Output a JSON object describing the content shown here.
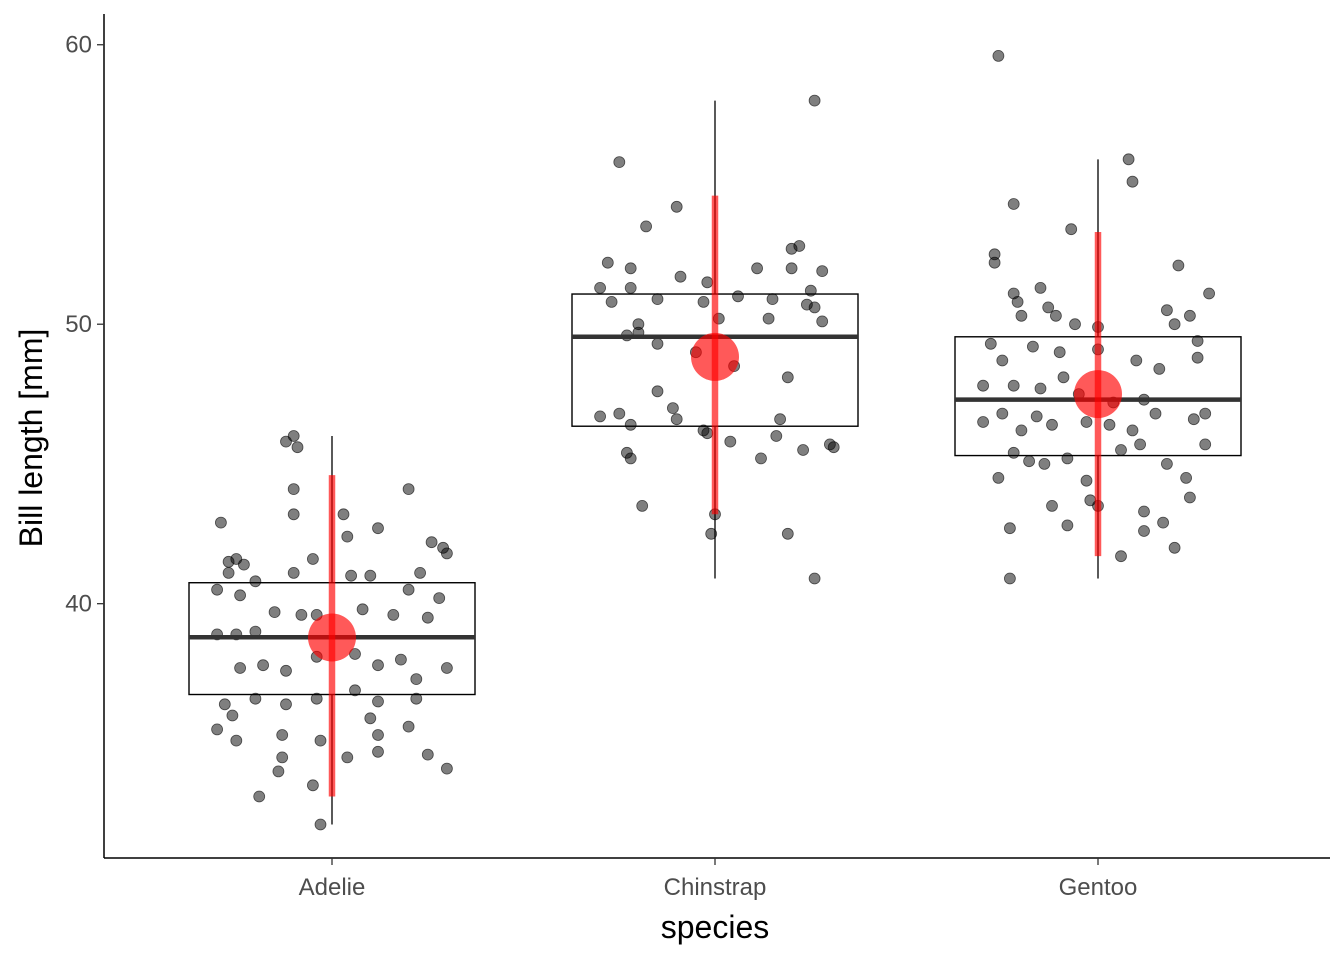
{
  "chart_data": {
    "type": "boxplot",
    "xlabel": "species",
    "ylabel": "Bill length [mm]",
    "categories": [
      "Adelie",
      "Chinstrap",
      "Gentoo"
    ],
    "y_ticks": [
      40,
      50,
      60
    ],
    "ylim": [
      30.9,
      61.1
    ],
    "grid": false,
    "legend": "none",
    "colors": {
      "points": "#000000",
      "box": "#000000",
      "mean": "#ff0000"
    },
    "boxes": [
      {
        "category": "Adelie",
        "q1": 36.75,
        "median": 38.8,
        "q3": 40.75,
        "whisker_low": 32.1,
        "whisker_high": 46.0,
        "mean": 38.79,
        "sd_low": 33.1,
        "sd_high": 44.6
      },
      {
        "category": "Chinstrap",
        "q1": 46.35,
        "median": 49.55,
        "q3": 51.08,
        "whisker_low": 40.9,
        "whisker_high": 58.0,
        "mean": 48.83,
        "sd_low": 43.2,
        "sd_high": 54.6
      },
      {
        "category": "Gentoo",
        "q1": 45.3,
        "median": 47.3,
        "q3": 49.55,
        "whisker_low": 40.9,
        "whisker_high": 55.9,
        "mean": 47.5,
        "sd_low": 41.7,
        "sd_high": 53.3
      }
    ],
    "points": [
      {
        "species": "Adelie",
        "offset": -0.29,
        "value": 42.9
      },
      {
        "species": "Adelie",
        "offset": -0.27,
        "value": 41.5
      },
      {
        "species": "Adelie",
        "offset": -0.27,
        "value": 41.1
      },
      {
        "species": "Adelie",
        "offset": -0.25,
        "value": 41.6
      },
      {
        "species": "Adelie",
        "offset": -0.23,
        "value": 41.4
      },
      {
        "species": "Adelie",
        "offset": -0.3,
        "value": 40.5
      },
      {
        "species": "Adelie",
        "offset": -0.2,
        "value": 40.8
      },
      {
        "species": "Adelie",
        "offset": -0.24,
        "value": 40.3
      },
      {
        "species": "Adelie",
        "offset": -0.1,
        "value": 41.1
      },
      {
        "species": "Adelie",
        "offset": -0.05,
        "value": 41.6
      },
      {
        "species": "Adelie",
        "offset": 0.05,
        "value": 41.0
      },
      {
        "species": "Adelie",
        "offset": 0.1,
        "value": 41.0
      },
      {
        "species": "Adelie",
        "offset": 0.2,
        "value": 40.5
      },
      {
        "species": "Adelie",
        "offset": 0.26,
        "value": 42.2
      },
      {
        "species": "Adelie",
        "offset": 0.29,
        "value": 42.0
      },
      {
        "species": "Adelie",
        "offset": 0.3,
        "value": 41.8
      },
      {
        "species": "Adelie",
        "offset": 0.12,
        "value": 42.7
      },
      {
        "species": "Adelie",
        "offset": 0.03,
        "value": 43.2
      },
      {
        "species": "Adelie",
        "offset": 0.04,
        "value": 42.4
      },
      {
        "species": "Adelie",
        "offset": -0.1,
        "value": 44.1
      },
      {
        "species": "Adelie",
        "offset": -0.1,
        "value": 43.2
      },
      {
        "species": "Adelie",
        "offset": -0.12,
        "value": 45.8
      },
      {
        "species": "Adelie",
        "offset": -0.1,
        "value": 46.0
      },
      {
        "species": "Adelie",
        "offset": -0.09,
        "value": 45.6
      },
      {
        "species": "Adelie",
        "offset": 0.2,
        "value": 44.1
      },
      {
        "species": "Adelie",
        "offset": 0.23,
        "value": 41.1
      },
      {
        "species": "Adelie",
        "offset": 0.28,
        "value": 40.2
      },
      {
        "species": "Adelie",
        "offset": -0.3,
        "value": 38.9
      },
      {
        "species": "Adelie",
        "offset": -0.25,
        "value": 38.9
      },
      {
        "species": "Adelie",
        "offset": -0.2,
        "value": 39.0
      },
      {
        "species": "Adelie",
        "offset": -0.15,
        "value": 39.7
      },
      {
        "species": "Adelie",
        "offset": -0.08,
        "value": 39.6
      },
      {
        "species": "Adelie",
        "offset": -0.04,
        "value": 39.6
      },
      {
        "species": "Adelie",
        "offset": 0.08,
        "value": 39.8
      },
      {
        "species": "Adelie",
        "offset": 0.16,
        "value": 39.6
      },
      {
        "species": "Adelie",
        "offset": 0.25,
        "value": 39.5
      },
      {
        "species": "Adelie",
        "offset": -0.24,
        "value": 37.7
      },
      {
        "species": "Adelie",
        "offset": -0.18,
        "value": 37.8
      },
      {
        "species": "Adelie",
        "offset": -0.12,
        "value": 37.6
      },
      {
        "species": "Adelie",
        "offset": -0.04,
        "value": 38.1
      },
      {
        "species": "Adelie",
        "offset": 0.06,
        "value": 38.2
      },
      {
        "species": "Adelie",
        "offset": 0.12,
        "value": 37.8
      },
      {
        "species": "Adelie",
        "offset": 0.18,
        "value": 38.0
      },
      {
        "species": "Adelie",
        "offset": 0.22,
        "value": 37.3
      },
      {
        "species": "Adelie",
        "offset": 0.3,
        "value": 37.7
      },
      {
        "species": "Adelie",
        "offset": -0.28,
        "value": 36.4
      },
      {
        "species": "Adelie",
        "offset": -0.2,
        "value": 36.6
      },
      {
        "species": "Adelie",
        "offset": -0.12,
        "value": 36.4
      },
      {
        "species": "Adelie",
        "offset": -0.04,
        "value": 36.6
      },
      {
        "species": "Adelie",
        "offset": 0.06,
        "value": 36.9
      },
      {
        "species": "Adelie",
        "offset": 0.12,
        "value": 36.5
      },
      {
        "species": "Adelie",
        "offset": 0.22,
        "value": 36.6
      },
      {
        "species": "Adelie",
        "offset": -0.26,
        "value": 36.0
      },
      {
        "species": "Adelie",
        "offset": 0.1,
        "value": 35.9
      },
      {
        "species": "Adelie",
        "offset": 0.2,
        "value": 35.6
      },
      {
        "species": "Adelie",
        "offset": -0.3,
        "value": 35.5
      },
      {
        "species": "Adelie",
        "offset": -0.25,
        "value": 35.1
      },
      {
        "species": "Adelie",
        "offset": -0.13,
        "value": 35.3
      },
      {
        "species": "Adelie",
        "offset": -0.03,
        "value": 35.1
      },
      {
        "species": "Adelie",
        "offset": 0.12,
        "value": 35.3
      },
      {
        "species": "Adelie",
        "offset": -0.13,
        "value": 34.5
      },
      {
        "species": "Adelie",
        "offset": 0.04,
        "value": 34.5
      },
      {
        "species": "Adelie",
        "offset": 0.12,
        "value": 34.7
      },
      {
        "species": "Adelie",
        "offset": 0.25,
        "value": 34.6
      },
      {
        "species": "Adelie",
        "offset": -0.14,
        "value": 34.0
      },
      {
        "species": "Adelie",
        "offset": 0.3,
        "value": 34.1
      },
      {
        "species": "Adelie",
        "offset": -0.05,
        "value": 33.5
      },
      {
        "species": "Adelie",
        "offset": -0.19,
        "value": 33.1
      },
      {
        "species": "Adelie",
        "offset": -0.03,
        "value": 32.1
      },
      {
        "species": "Chinstrap",
        "offset": -0.25,
        "value": 55.8
      },
      {
        "species": "Chinstrap",
        "offset": 0.26,
        "value": 58.0
      },
      {
        "species": "Chinstrap",
        "offset": -0.18,
        "value": 53.5
      },
      {
        "species": "Chinstrap",
        "offset": -0.1,
        "value": 54.2
      },
      {
        "species": "Chinstrap",
        "offset": -0.28,
        "value": 52.2
      },
      {
        "species": "Chinstrap",
        "offset": -0.22,
        "value": 52.0
      },
      {
        "species": "Chinstrap",
        "offset": 0.22,
        "value": 52.8
      },
      {
        "species": "Chinstrap",
        "offset": 0.2,
        "value": 52.7
      },
      {
        "species": "Chinstrap",
        "offset": 0.28,
        "value": 51.9
      },
      {
        "species": "Chinstrap",
        "offset": 0.2,
        "value": 52.0
      },
      {
        "species": "Chinstrap",
        "offset": 0.11,
        "value": 52.0
      },
      {
        "species": "Chinstrap",
        "offset": -0.09,
        "value": 51.7
      },
      {
        "species": "Chinstrap",
        "offset": -0.02,
        "value": 51.5
      },
      {
        "species": "Chinstrap",
        "offset": 0.25,
        "value": 51.2
      },
      {
        "species": "Chinstrap",
        "offset": 0.06,
        "value": 51.0
      },
      {
        "species": "Chinstrap",
        "offset": -0.3,
        "value": 51.3
      },
      {
        "species": "Chinstrap",
        "offset": -0.22,
        "value": 51.3
      },
      {
        "species": "Chinstrap",
        "offset": -0.27,
        "value": 50.8
      },
      {
        "species": "Chinstrap",
        "offset": -0.15,
        "value": 50.9
      },
      {
        "species": "Chinstrap",
        "offset": 0.15,
        "value": 50.9
      },
      {
        "species": "Chinstrap",
        "offset": 0.24,
        "value": 50.7
      },
      {
        "species": "Chinstrap",
        "offset": 0.26,
        "value": 50.6
      },
      {
        "species": "Chinstrap",
        "offset": 0.28,
        "value": 50.1
      },
      {
        "species": "Chinstrap",
        "offset": -0.03,
        "value": 50.8
      },
      {
        "species": "Chinstrap",
        "offset": 0.01,
        "value": 50.2
      },
      {
        "species": "Chinstrap",
        "offset": 0.14,
        "value": 50.2
      },
      {
        "species": "Chinstrap",
        "offset": -0.2,
        "value": 50.0
      },
      {
        "species": "Chinstrap",
        "offset": -0.23,
        "value": 49.6
      },
      {
        "species": "Chinstrap",
        "offset": -0.2,
        "value": 49.7
      },
      {
        "species": "Chinstrap",
        "offset": -0.15,
        "value": 49.3
      },
      {
        "species": "Chinstrap",
        "offset": -0.05,
        "value": 49.0
      },
      {
        "species": "Chinstrap",
        "offset": 0.05,
        "value": 48.5
      },
      {
        "species": "Chinstrap",
        "offset": 0.19,
        "value": 48.1
      },
      {
        "species": "Chinstrap",
        "offset": -0.15,
        "value": 47.6
      },
      {
        "species": "Chinstrap",
        "offset": -0.11,
        "value": 47.0
      },
      {
        "species": "Chinstrap",
        "offset": -0.1,
        "value": 46.6
      },
      {
        "species": "Chinstrap",
        "offset": -0.3,
        "value": 46.7
      },
      {
        "species": "Chinstrap",
        "offset": -0.25,
        "value": 46.8
      },
      {
        "species": "Chinstrap",
        "offset": -0.22,
        "value": 46.4
      },
      {
        "species": "Chinstrap",
        "offset": 0.17,
        "value": 46.6
      },
      {
        "species": "Chinstrap",
        "offset": 0.3,
        "value": 45.7
      },
      {
        "species": "Chinstrap",
        "offset": 0.31,
        "value": 45.6
      },
      {
        "species": "Chinstrap",
        "offset": 0.23,
        "value": 45.5
      },
      {
        "species": "Chinstrap",
        "offset": -0.23,
        "value": 45.4
      },
      {
        "species": "Chinstrap",
        "offset": -0.22,
        "value": 45.2
      },
      {
        "species": "Chinstrap",
        "offset": -0.03,
        "value": 46.2
      },
      {
        "species": "Chinstrap",
        "offset": -0.02,
        "value": 46.1
      },
      {
        "species": "Chinstrap",
        "offset": 0.04,
        "value": 45.8
      },
      {
        "species": "Chinstrap",
        "offset": 0.12,
        "value": 45.2
      },
      {
        "species": "Chinstrap",
        "offset": 0.16,
        "value": 46.0
      },
      {
        "species": "Chinstrap",
        "offset": -0.19,
        "value": 43.5
      },
      {
        "species": "Chinstrap",
        "offset": 0.0,
        "value": 43.2
      },
      {
        "species": "Chinstrap",
        "offset": -0.01,
        "value": 42.5
      },
      {
        "species": "Chinstrap",
        "offset": 0.19,
        "value": 42.5
      },
      {
        "species": "Chinstrap",
        "offset": 0.26,
        "value": 40.9
      },
      {
        "species": "Gentoo",
        "offset": -0.26,
        "value": 59.6
      },
      {
        "species": "Gentoo",
        "offset": 0.08,
        "value": 55.9
      },
      {
        "species": "Gentoo",
        "offset": 0.09,
        "value": 55.1
      },
      {
        "species": "Gentoo",
        "offset": -0.22,
        "value": 54.3
      },
      {
        "species": "Gentoo",
        "offset": -0.07,
        "value": 53.4
      },
      {
        "species": "Gentoo",
        "offset": -0.27,
        "value": 52.5
      },
      {
        "species": "Gentoo",
        "offset": -0.27,
        "value": 52.2
      },
      {
        "species": "Gentoo",
        "offset": 0.21,
        "value": 52.1
      },
      {
        "species": "Gentoo",
        "offset": 0.29,
        "value": 51.1
      },
      {
        "species": "Gentoo",
        "offset": -0.22,
        "value": 51.1
      },
      {
        "species": "Gentoo",
        "offset": -0.15,
        "value": 51.3
      },
      {
        "species": "Gentoo",
        "offset": -0.21,
        "value": 50.8
      },
      {
        "species": "Gentoo",
        "offset": -0.2,
        "value": 50.3
      },
      {
        "species": "Gentoo",
        "offset": -0.13,
        "value": 50.6
      },
      {
        "species": "Gentoo",
        "offset": -0.11,
        "value": 50.3
      },
      {
        "species": "Gentoo",
        "offset": -0.06,
        "value": 50.0
      },
      {
        "species": "Gentoo",
        "offset": 0.0,
        "value": 49.9
      },
      {
        "species": "Gentoo",
        "offset": 0.18,
        "value": 50.5
      },
      {
        "species": "Gentoo",
        "offset": 0.2,
        "value": 50.0
      },
      {
        "species": "Gentoo",
        "offset": 0.24,
        "value": 50.3
      },
      {
        "species": "Gentoo",
        "offset": 0.26,
        "value": 49.4
      },
      {
        "species": "Gentoo",
        "offset": -0.28,
        "value": 49.3
      },
      {
        "species": "Gentoo",
        "offset": -0.17,
        "value": 49.2
      },
      {
        "species": "Gentoo",
        "offset": -0.1,
        "value": 49.0
      },
      {
        "species": "Gentoo",
        "offset": 0.0,
        "value": 49.1
      },
      {
        "species": "Gentoo",
        "offset": 0.1,
        "value": 48.7
      },
      {
        "species": "Gentoo",
        "offset": 0.16,
        "value": 48.4
      },
      {
        "species": "Gentoo",
        "offset": 0.26,
        "value": 48.8
      },
      {
        "species": "Gentoo",
        "offset": -0.25,
        "value": 48.7
      },
      {
        "species": "Gentoo",
        "offset": -0.22,
        "value": 47.8
      },
      {
        "species": "Gentoo",
        "offset": -0.15,
        "value": 47.7
      },
      {
        "species": "Gentoo",
        "offset": -0.09,
        "value": 48.1
      },
      {
        "species": "Gentoo",
        "offset": -0.05,
        "value": 47.5
      },
      {
        "species": "Gentoo",
        "offset": 0.04,
        "value": 47.2
      },
      {
        "species": "Gentoo",
        "offset": 0.12,
        "value": 47.3
      },
      {
        "species": "Gentoo",
        "offset": -0.3,
        "value": 47.8
      },
      {
        "species": "Gentoo",
        "offset": -0.25,
        "value": 46.8
      },
      {
        "species": "Gentoo",
        "offset": -0.2,
        "value": 46.2
      },
      {
        "species": "Gentoo",
        "offset": -0.16,
        "value": 46.7
      },
      {
        "species": "Gentoo",
        "offset": -0.12,
        "value": 46.4
      },
      {
        "species": "Gentoo",
        "offset": -0.03,
        "value": 46.5
      },
      {
        "species": "Gentoo",
        "offset": 0.03,
        "value": 46.4
      },
      {
        "species": "Gentoo",
        "offset": 0.09,
        "value": 46.2
      },
      {
        "species": "Gentoo",
        "offset": 0.15,
        "value": 46.8
      },
      {
        "species": "Gentoo",
        "offset": 0.25,
        "value": 46.6
      },
      {
        "species": "Gentoo",
        "offset": 0.28,
        "value": 46.8
      },
      {
        "species": "Gentoo",
        "offset": -0.3,
        "value": 46.5
      },
      {
        "species": "Gentoo",
        "offset": -0.22,
        "value": 45.4
      },
      {
        "species": "Gentoo",
        "offset": -0.18,
        "value": 45.1
      },
      {
        "species": "Gentoo",
        "offset": -0.14,
        "value": 45.0
      },
      {
        "species": "Gentoo",
        "offset": -0.08,
        "value": 45.2
      },
      {
        "species": "Gentoo",
        "offset": 0.06,
        "value": 45.5
      },
      {
        "species": "Gentoo",
        "offset": 0.11,
        "value": 45.7
      },
      {
        "species": "Gentoo",
        "offset": 0.18,
        "value": 45.0
      },
      {
        "species": "Gentoo",
        "offset": 0.23,
        "value": 44.5
      },
      {
        "species": "Gentoo",
        "offset": 0.28,
        "value": 45.7
      },
      {
        "species": "Gentoo",
        "offset": -0.26,
        "value": 44.5
      },
      {
        "species": "Gentoo",
        "offset": -0.12,
        "value": 43.5
      },
      {
        "species": "Gentoo",
        "offset": -0.03,
        "value": 44.4
      },
      {
        "species": "Gentoo",
        "offset": -0.02,
        "value": 43.7
      },
      {
        "species": "Gentoo",
        "offset": 0.0,
        "value": 43.5
      },
      {
        "species": "Gentoo",
        "offset": 0.12,
        "value": 43.3
      },
      {
        "species": "Gentoo",
        "offset": 0.24,
        "value": 43.8
      },
      {
        "species": "Gentoo",
        "offset": -0.23,
        "value": 42.7
      },
      {
        "species": "Gentoo",
        "offset": -0.08,
        "value": 42.8
      },
      {
        "species": "Gentoo",
        "offset": 0.12,
        "value": 42.6
      },
      {
        "species": "Gentoo",
        "offset": 0.17,
        "value": 42.9
      },
      {
        "species": "Gentoo",
        "offset": 0.2,
        "value": 42.0
      },
      {
        "species": "Gentoo",
        "offset": 0.06,
        "value": 41.7
      },
      {
        "species": "Gentoo",
        "offset": -0.23,
        "value": 40.9
      }
    ]
  }
}
